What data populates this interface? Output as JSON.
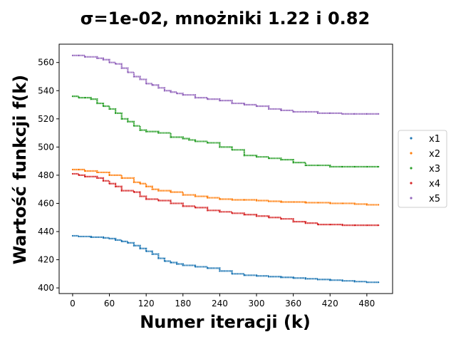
{
  "chart_data": {
    "type": "scatter",
    "title": "σ=1e-02, mnożniki 1.22 i 0.82",
    "xlabel": "Numer iteracji (k)",
    "ylabel": "Wartość funkcji f(k)",
    "xlim": [
      -22,
      522
    ],
    "ylim": [
      396,
      573
    ],
    "xticks": [
      0,
      60,
      120,
      180,
      240,
      300,
      360,
      420,
      480
    ],
    "yticks": [
      400,
      420,
      440,
      460,
      480,
      500,
      520,
      540,
      560
    ],
    "grid": false,
    "legend_position": "right",
    "series": [
      {
        "name": "x1",
        "color": "#1f77b4",
        "points": [
          [
            0,
            437
          ],
          [
            10,
            436.5
          ],
          [
            30,
            436
          ],
          [
            50,
            435.5
          ],
          [
            60,
            435
          ],
          [
            70,
            434
          ],
          [
            80,
            433
          ],
          [
            90,
            432
          ],
          [
            100,
            430
          ],
          [
            110,
            428
          ],
          [
            120,
            426
          ],
          [
            130,
            424
          ],
          [
            140,
            421
          ],
          [
            150,
            419
          ],
          [
            160,
            418
          ],
          [
            170,
            417
          ],
          [
            180,
            416
          ],
          [
            200,
            415
          ],
          [
            220,
            414
          ],
          [
            240,
            412
          ],
          [
            260,
            410
          ],
          [
            280,
            409
          ],
          [
            300,
            408.5
          ],
          [
            320,
            408
          ],
          [
            340,
            407.5
          ],
          [
            360,
            407
          ],
          [
            380,
            406.5
          ],
          [
            400,
            406
          ],
          [
            420,
            405.5
          ],
          [
            440,
            405
          ],
          [
            460,
            404.5
          ],
          [
            480,
            404
          ],
          [
            499,
            404
          ]
        ]
      },
      {
        "name": "x2",
        "color": "#ff7f0e",
        "points": [
          [
            0,
            484
          ],
          [
            10,
            484
          ],
          [
            20,
            483
          ],
          [
            40,
            482
          ],
          [
            60,
            480
          ],
          [
            80,
            478
          ],
          [
            100,
            475
          ],
          [
            110,
            474
          ],
          [
            120,
            472
          ],
          [
            130,
            470
          ],
          [
            140,
            469
          ],
          [
            160,
            468
          ],
          [
            180,
            466
          ],
          [
            200,
            465
          ],
          [
            220,
            464
          ],
          [
            240,
            463
          ],
          [
            260,
            462.5
          ],
          [
            280,
            462.5
          ],
          [
            300,
            462
          ],
          [
            320,
            461.5
          ],
          [
            340,
            461
          ],
          [
            360,
            461
          ],
          [
            380,
            460.5
          ],
          [
            400,
            460.5
          ],
          [
            420,
            460
          ],
          [
            440,
            460
          ],
          [
            460,
            459.5
          ],
          [
            480,
            459
          ],
          [
            499,
            459
          ]
        ]
      },
      {
        "name": "x3",
        "color": "#2ca02c",
        "points": [
          [
            0,
            536
          ],
          [
            10,
            535
          ],
          [
            20,
            535
          ],
          [
            30,
            534
          ],
          [
            40,
            531
          ],
          [
            50,
            529
          ],
          [
            60,
            527
          ],
          [
            70,
            524
          ],
          [
            80,
            520
          ],
          [
            90,
            518
          ],
          [
            100,
            515
          ],
          [
            110,
            512
          ],
          [
            120,
            511
          ],
          [
            140,
            510
          ],
          [
            160,
            507
          ],
          [
            180,
            506
          ],
          [
            190,
            505
          ],
          [
            200,
            504
          ],
          [
            220,
            503
          ],
          [
            240,
            500
          ],
          [
            260,
            498
          ],
          [
            280,
            494
          ],
          [
            300,
            493
          ],
          [
            320,
            492
          ],
          [
            340,
            491
          ],
          [
            360,
            489
          ],
          [
            380,
            487
          ],
          [
            400,
            487
          ],
          [
            420,
            486
          ],
          [
            440,
            486
          ],
          [
            460,
            486
          ],
          [
            480,
            486
          ],
          [
            499,
            486
          ]
        ]
      },
      {
        "name": "x4",
        "color": "#d62728",
        "points": [
          [
            0,
            481
          ],
          [
            10,
            480
          ],
          [
            20,
            479
          ],
          [
            40,
            478
          ],
          [
            50,
            476
          ],
          [
            60,
            474
          ],
          [
            70,
            472
          ],
          [
            80,
            469
          ],
          [
            100,
            468
          ],
          [
            110,
            465
          ],
          [
            120,
            463
          ],
          [
            140,
            462
          ],
          [
            160,
            460
          ],
          [
            180,
            458
          ],
          [
            200,
            457
          ],
          [
            220,
            455
          ],
          [
            240,
            454
          ],
          [
            260,
            453
          ],
          [
            280,
            452
          ],
          [
            300,
            451
          ],
          [
            320,
            450
          ],
          [
            340,
            449
          ],
          [
            360,
            447
          ],
          [
            380,
            446
          ],
          [
            400,
            445
          ],
          [
            420,
            445
          ],
          [
            440,
            444.5
          ],
          [
            460,
            444.5
          ],
          [
            480,
            444.5
          ],
          [
            499,
            444.5
          ]
        ]
      },
      {
        "name": "x5",
        "color": "#9467bd",
        "points": [
          [
            0,
            565
          ],
          [
            10,
            565
          ],
          [
            20,
            564
          ],
          [
            40,
            563
          ],
          [
            50,
            562
          ],
          [
            60,
            560
          ],
          [
            70,
            559
          ],
          [
            80,
            556
          ],
          [
            90,
            553
          ],
          [
            100,
            550
          ],
          [
            110,
            548
          ],
          [
            120,
            545
          ],
          [
            130,
            544
          ],
          [
            140,
            542
          ],
          [
            150,
            540
          ],
          [
            160,
            539
          ],
          [
            170,
            538
          ],
          [
            180,
            537
          ],
          [
            200,
            535
          ],
          [
            220,
            534
          ],
          [
            240,
            533
          ],
          [
            260,
            531
          ],
          [
            280,
            530
          ],
          [
            300,
            529
          ],
          [
            320,
            527
          ],
          [
            340,
            526
          ],
          [
            360,
            525
          ],
          [
            380,
            525
          ],
          [
            400,
            524
          ],
          [
            420,
            524
          ],
          [
            440,
            523.5
          ],
          [
            460,
            523.5
          ],
          [
            480,
            523.5
          ],
          [
            499,
            523.5
          ]
        ]
      }
    ]
  }
}
